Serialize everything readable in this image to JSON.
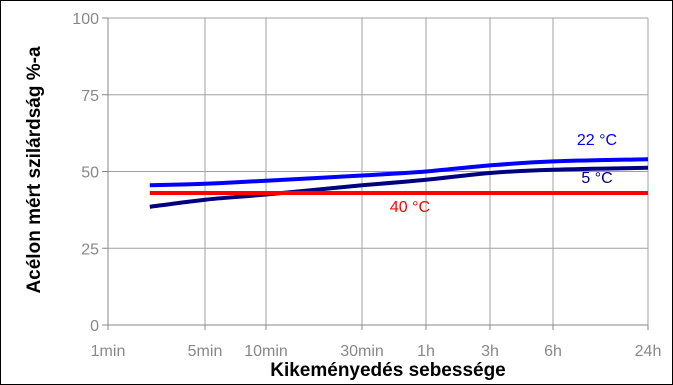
{
  "chart_data": {
    "type": "line",
    "title": "",
    "xlabel": "Kikeményedés sebessége",
    "ylabel": "Acélon mért szilárdság %-a",
    "x_scale": "log",
    "x_ticks": [
      {
        "label": "1min",
        "minutes": 1
      },
      {
        "label": "5min",
        "minutes": 5
      },
      {
        "label": "10min",
        "minutes": 10
      },
      {
        "label": "30min",
        "minutes": 30
      },
      {
        "label": "1h",
        "minutes": 60
      },
      {
        "label": "3h",
        "minutes": 180
      },
      {
        "label": "6h",
        "minutes": 360
      },
      {
        "label": "24h",
        "minutes": 1440
      }
    ],
    "y_ticks": [
      0,
      25,
      50,
      75,
      100
    ],
    "ylim": [
      0,
      100
    ],
    "grid": true,
    "series": [
      {
        "name": "22 °C",
        "color": "#0000ff",
        "points": [
          [
            2,
            45.5
          ],
          [
            5,
            46
          ],
          [
            10,
            47
          ],
          [
            30,
            48.7
          ],
          [
            60,
            50
          ],
          [
            180,
            52
          ],
          [
            360,
            53.3
          ],
          [
            1440,
            54
          ]
        ]
      },
      {
        "name": "5 °C",
        "color": "#000080",
        "points": [
          [
            2,
            38.5
          ],
          [
            5,
            40.8
          ],
          [
            10,
            42.5
          ],
          [
            30,
            45.5
          ],
          [
            60,
            47.3
          ],
          [
            180,
            49.5
          ],
          [
            360,
            50.6
          ],
          [
            1440,
            51.2
          ]
        ]
      },
      {
        "name": "40 °C",
        "color": "#ff0000",
        "points": [
          [
            2,
            43
          ],
          [
            10,
            43
          ],
          [
            60,
            43
          ],
          [
            360,
            43
          ],
          [
            1440,
            43
          ]
        ]
      }
    ]
  }
}
